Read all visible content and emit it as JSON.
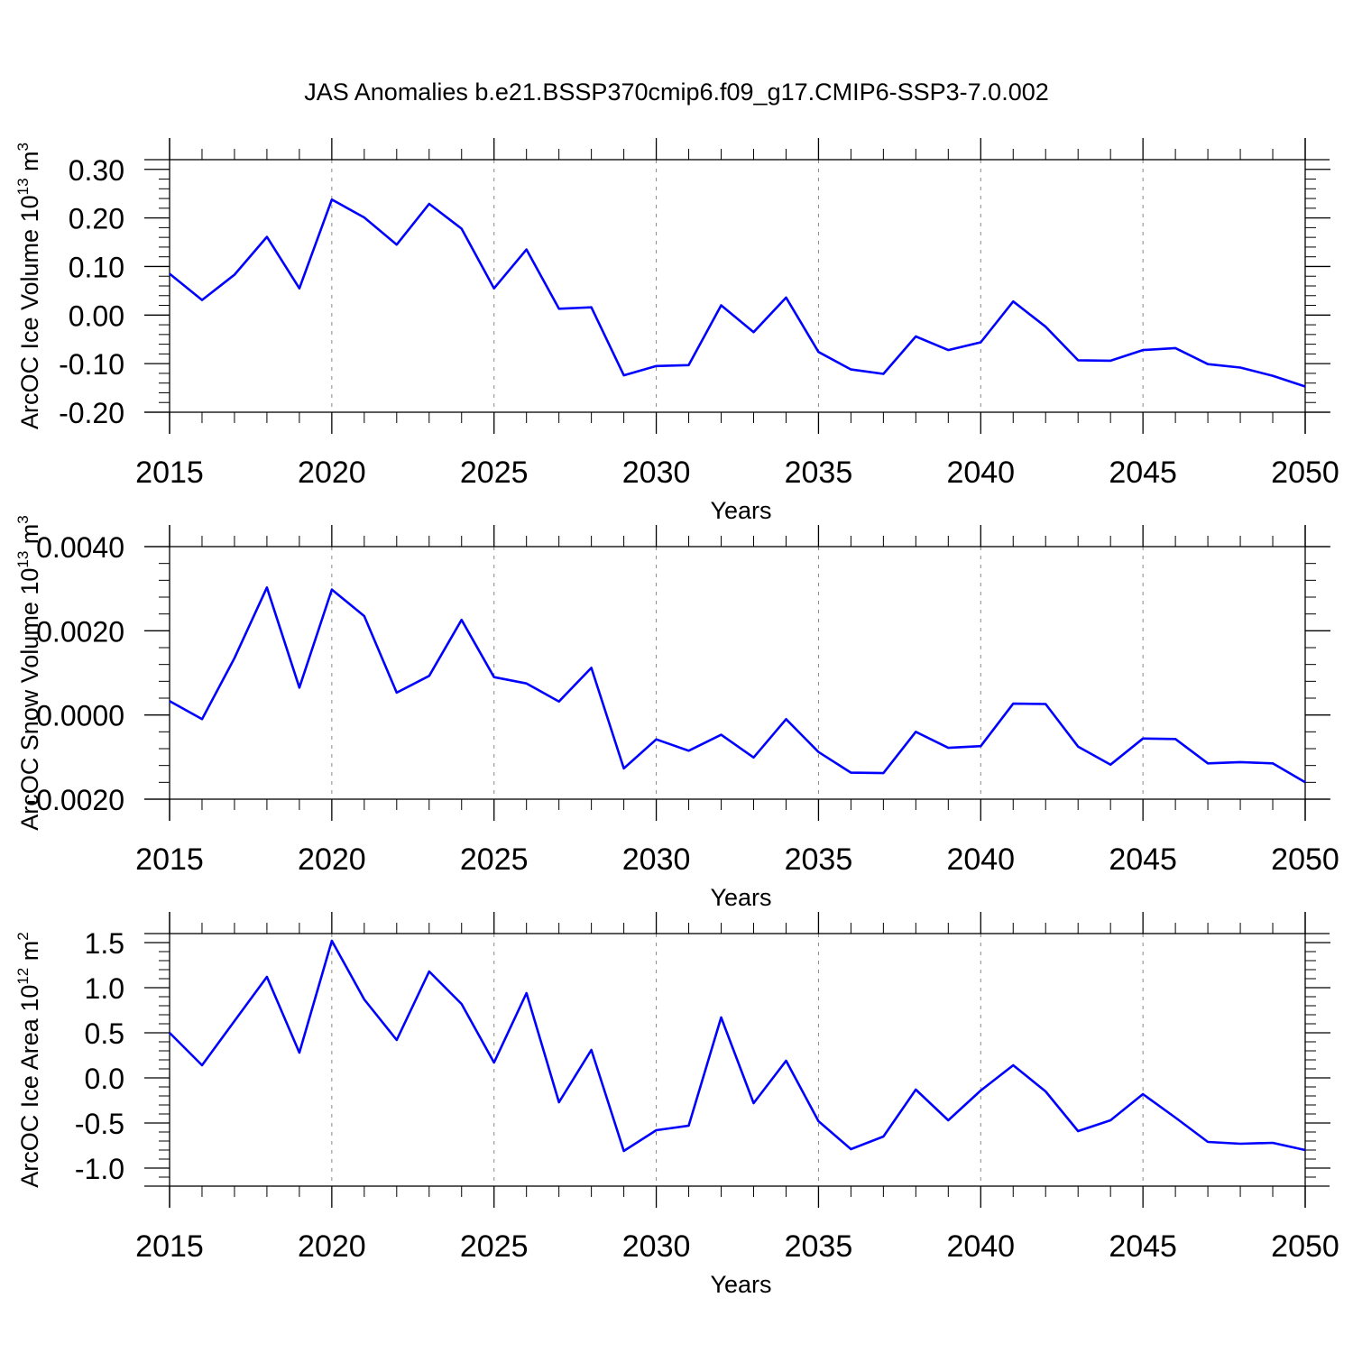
{
  "title": "JAS Anomalies b.e21.BSSP370cmip6.f09_g17.CMIP6-SSP3-7.0.002",
  "colors": {
    "line": "#0000ff",
    "axis": "#000000",
    "grid": "#888888"
  },
  "chart_data": [
    {
      "type": "line",
      "name": "ice-volume",
      "ylabel_base": "ArcOC Ice Volume 10",
      "ylabel_exp": "13",
      "ylabel_unit": "m",
      "ylabel_unit_exp": "3",
      "xlabel": "Years",
      "xlim": [
        2015,
        2050
      ],
      "ylim": [
        -0.2,
        0.32
      ],
      "xticks": [
        2015,
        2020,
        2025,
        2030,
        2035,
        2040,
        2045,
        2050
      ],
      "xtick_labels": [
        "2015",
        "2020",
        "2025",
        "2030",
        "2035",
        "2040",
        "2045",
        "2050"
      ],
      "yticks": [
        -0.2,
        -0.1,
        0.0,
        0.1,
        0.2,
        0.3
      ],
      "ytick_labels": [
        "-0.20",
        "-0.10",
        "0.00",
        "0.10",
        "0.20",
        "0.30"
      ],
      "x": [
        2015,
        2016,
        2017,
        2018,
        2019,
        2020,
        2021,
        2022,
        2023,
        2024,
        2025,
        2026,
        2027,
        2028,
        2029,
        2030,
        2031,
        2032,
        2033,
        2034,
        2035,
        2036,
        2037,
        2038,
        2039,
        2040,
        2041,
        2042,
        2043,
        2044,
        2045,
        2046,
        2047,
        2048,
        2049,
        2050
      ],
      "values": [
        0.085,
        0.031,
        0.083,
        0.161,
        0.055,
        0.238,
        0.201,
        0.145,
        0.229,
        0.178,
        0.055,
        0.135,
        0.013,
        0.016,
        -0.124,
        -0.105,
        -0.103,
        0.02,
        -0.035,
        0.036,
        -0.076,
        -0.112,
        -0.121,
        -0.044,
        -0.072,
        -0.056,
        0.028,
        -0.024,
        -0.093,
        -0.094,
        -0.072,
        -0.068,
        -0.101,
        -0.108,
        -0.125,
        -0.147
      ]
    },
    {
      "type": "line",
      "name": "snow-volume",
      "ylabel_base": "ArcOC Snow Volume 10",
      "ylabel_exp": "13",
      "ylabel_unit": "m",
      "ylabel_unit_exp": "3",
      "xlabel": "Years",
      "xlim": [
        2015,
        2050
      ],
      "ylim": [
        -0.002,
        0.004
      ],
      "xticks": [
        2015,
        2020,
        2025,
        2030,
        2035,
        2040,
        2045,
        2050
      ],
      "xtick_labels": [
        "2015",
        "2020",
        "2025",
        "2030",
        "2035",
        "2040",
        "2045",
        "2050"
      ],
      "yticks": [
        -0.002,
        0.0,
        0.002,
        0.004
      ],
      "ytick_labels": [
        "-0.0020",
        "0.0000",
        "0.0020",
        "0.0040"
      ],
      "x": [
        2015,
        2016,
        2017,
        2018,
        2019,
        2020,
        2021,
        2022,
        2023,
        2024,
        2025,
        2026,
        2027,
        2028,
        2029,
        2030,
        2031,
        2032,
        2033,
        2034,
        2035,
        2036,
        2037,
        2038,
        2039,
        2040,
        2041,
        2042,
        2043,
        2044,
        2045,
        2046,
        2047,
        2048,
        2049,
        2050
      ],
      "values": [
        0.00033,
        -0.0001,
        0.00135,
        0.00303,
        0.00065,
        0.00298,
        0.00235,
        0.00053,
        0.00093,
        0.00226,
        0.0009,
        0.00075,
        0.00032,
        0.00112,
        -0.00127,
        -0.00058,
        -0.00085,
        -0.00047,
        -0.00101,
        -0.0001,
        -0.00088,
        -0.00137,
        -0.00138,
        -0.0004,
        -0.00078,
        -0.00074,
        0.00027,
        0.00026,
        -0.00075,
        -0.00118,
        -0.00056,
        -0.00057,
        -0.00115,
        -0.00112,
        -0.00115,
        -0.0016
      ]
    },
    {
      "type": "line",
      "name": "ice-area",
      "ylabel_base": "ArcOC Ice Area 10",
      "ylabel_exp": "12",
      "ylabel_unit": "m",
      "ylabel_unit_exp": "2",
      "xlabel": "Years",
      "xlim": [
        2015,
        2050
      ],
      "ylim": [
        -1.2,
        1.6
      ],
      "xticks": [
        2015,
        2020,
        2025,
        2030,
        2035,
        2040,
        2045,
        2050
      ],
      "xtick_labels": [
        "2015",
        "2020",
        "2025",
        "2030",
        "2035",
        "2040",
        "2045",
        "2050"
      ],
      "yticks": [
        -1.0,
        -0.5,
        0.0,
        0.5,
        1.0,
        1.5
      ],
      "ytick_labels": [
        "-1.0",
        "-0.5",
        "0.0",
        "0.5",
        "1.0",
        "1.5"
      ],
      "x": [
        2015,
        2016,
        2017,
        2018,
        2019,
        2020,
        2021,
        2022,
        2023,
        2024,
        2025,
        2026,
        2027,
        2028,
        2029,
        2030,
        2031,
        2032,
        2033,
        2034,
        2035,
        2036,
        2037,
        2038,
        2039,
        2040,
        2041,
        2042,
        2043,
        2044,
        2045,
        2046,
        2047,
        2048,
        2049,
        2050
      ],
      "values": [
        0.5,
        0.14,
        0.63,
        1.12,
        0.28,
        1.52,
        0.87,
        0.42,
        1.18,
        0.82,
        0.17,
        0.94,
        -0.27,
        0.31,
        -0.81,
        -0.58,
        -0.53,
        0.67,
        -0.28,
        0.19,
        -0.48,
        -0.79,
        -0.65,
        -0.13,
        -0.47,
        -0.14,
        0.14,
        -0.15,
        -0.59,
        -0.47,
        -0.18,
        -0.44,
        -0.71,
        -0.73,
        -0.72,
        -0.8
      ]
    }
  ]
}
